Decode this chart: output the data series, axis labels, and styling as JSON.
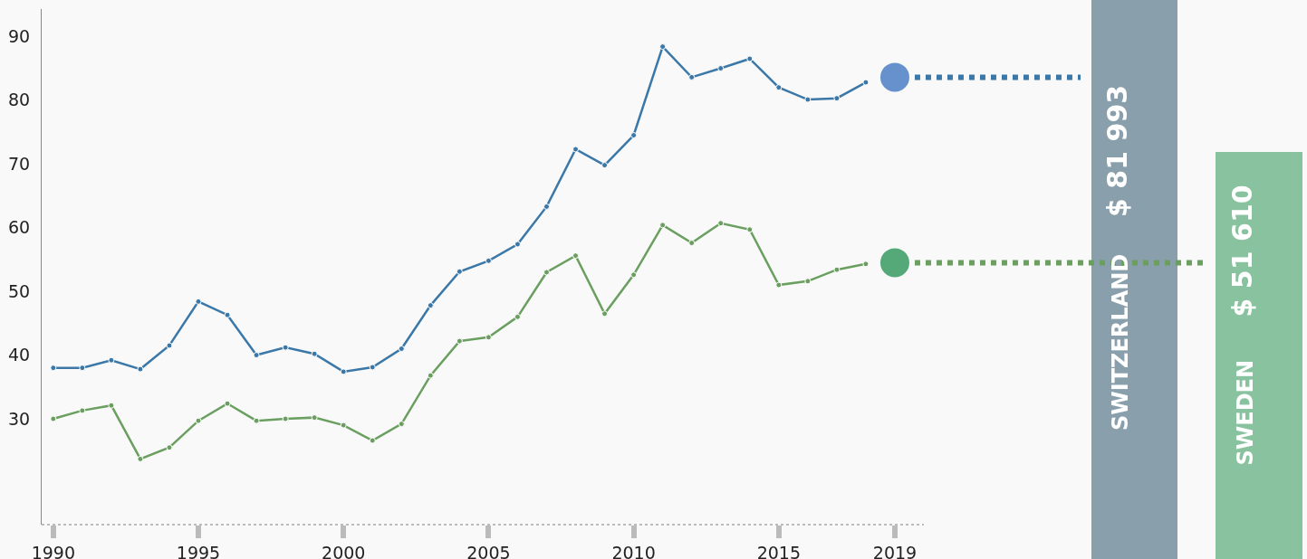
{
  "chart_data": {
    "type": "line",
    "x": [
      1990,
      1991,
      1992,
      1993,
      1994,
      1995,
      1996,
      1997,
      1998,
      1999,
      2000,
      2001,
      2002,
      2003,
      2004,
      2005,
      2006,
      2007,
      2008,
      2009,
      2010,
      2011,
      2012,
      2013,
      2014,
      2015,
      2016,
      2017,
      2018
    ],
    "series": [
      {
        "name": "SWITZERLAND",
        "color": "#3b78a8",
        "values": [
          38.0,
          38.0,
          39.2,
          37.8,
          41.5,
          48.4,
          46.3,
          40.0,
          41.2,
          40.2,
          37.4,
          38.1,
          41.0,
          47.8,
          53.1,
          54.8,
          57.4,
          63.3,
          72.3,
          69.8,
          74.5,
          88.4,
          83.6,
          85.0,
          86.5,
          82.0,
          80.1,
          80.3,
          82.8
        ]
      },
      {
        "name": "SWEDEN",
        "color": "#6a9f60",
        "values": [
          30.0,
          31.3,
          32.1,
          23.7,
          25.5,
          29.7,
          32.4,
          29.7,
          30.0,
          30.2,
          29.0,
          26.6,
          29.2,
          36.8,
          42.2,
          42.8,
          46.0,
          53.0,
          55.6,
          46.5,
          52.6,
          60.4,
          57.6,
          60.7,
          59.7,
          51.0,
          51.6,
          53.4,
          54.3
        ]
      },
      {
        "type": "scatter",
        "color": "#6691cc",
        "x": [
          2019
        ],
        "values": [
          83.6
        ]
      },
      {
        "type": "scatter",
        "color": "#55a878",
        "x": [
          2019
        ],
        "values": [
          54.5
        ]
      }
    ],
    "xlim": [
      1989.6,
      2020
    ],
    "xticks": [
      1990,
      1995,
      2000,
      2005,
      2010,
      2015,
      2019
    ],
    "ylim": [
      13.4,
      94.3
    ],
    "yticks": [
      30,
      40,
      50,
      60,
      70,
      80,
      90
    ],
    "grid": false,
    "legend": false,
    "marker": "circle",
    "line_style": "solid",
    "annotations": [
      "$ 81 993",
      "$ 51 610"
    ]
  }
}
